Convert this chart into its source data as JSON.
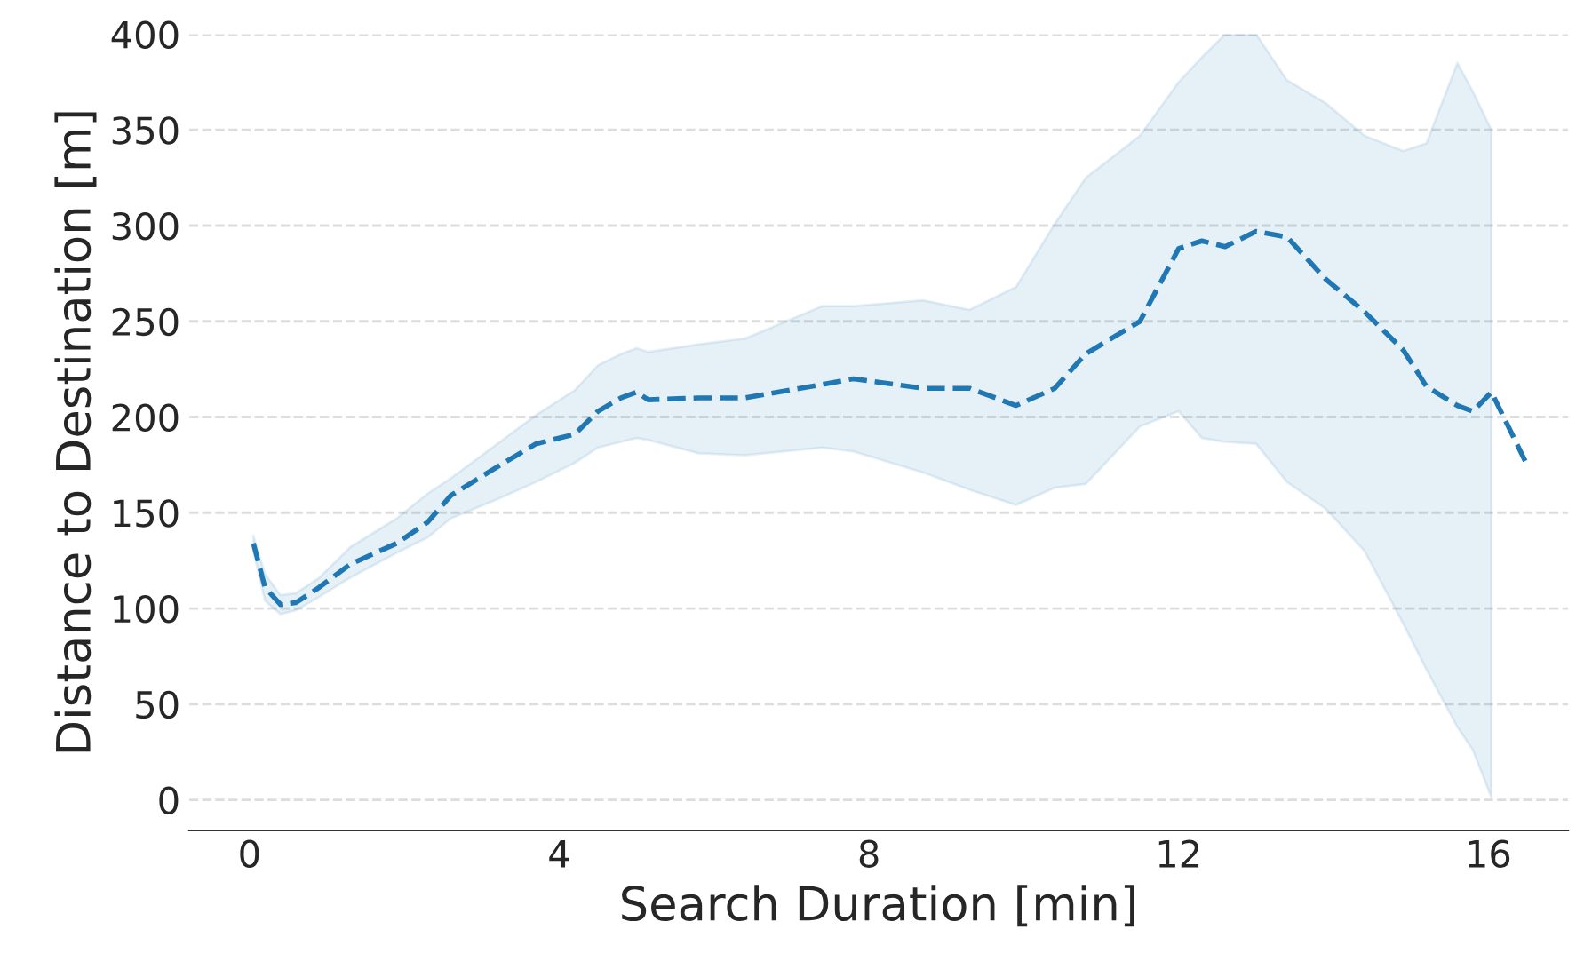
{
  "chart_data": {
    "type": "line",
    "xlabel": "Search Duration [min]",
    "ylabel": "Distance to Destination [m]",
    "x": [
      0.05,
      0.2,
      0.4,
      0.6,
      0.9,
      1.3,
      1.9,
      2.3,
      2.6,
      3.2,
      3.7,
      4.2,
      4.5,
      4.8,
      5.0,
      5.15,
      5.8,
      6.4,
      7.4,
      7.8,
      8.7,
      9.3,
      9.9,
      10.4,
      10.8,
      11.5,
      12.0,
      12.3,
      12.6,
      13.0,
      13.4,
      13.9,
      14.4,
      14.9,
      15.2,
      15.6,
      15.8,
      16.04,
      16.5
    ],
    "series": [
      {
        "color": "#1f77b4",
        "values": [
          134,
          111,
          102,
          103,
          111,
          123,
          134,
          145,
          159,
          174,
          186,
          191,
          203,
          210,
          213,
          209,
          210,
          210,
          217,
          220,
          215,
          215,
          206,
          215,
          233,
          250,
          288,
          292,
          289,
          297,
          294,
          272,
          255,
          235,
          216,
          206,
          203,
          213,
          175
        ],
        "lower": [
          130,
          104,
          97,
          99,
          106,
          116,
          129,
          137,
          147,
          157,
          166,
          176,
          184,
          187,
          189,
          188,
          181,
          180,
          184,
          182,
          171,
          162,
          154,
          163,
          165,
          195,
          203,
          189,
          187,
          186,
          166,
          152,
          130,
          92,
          68,
          38,
          26,
          1,
          null
        ],
        "upper": [
          138,
          118,
          107,
          108,
          116,
          132,
          147,
          160,
          168,
          186,
          201,
          214,
          227,
          233,
          236,
          234,
          238,
          241,
          258,
          258,
          261,
          256,
          268,
          301,
          325,
          347,
          375,
          388,
          400,
          400,
          376,
          364,
          347,
          339,
          343,
          385,
          370,
          350,
          null
        ]
      }
    ],
    "line_style": "dashed",
    "marker": "none",
    "xlim": [
      -0.78,
      17.03
    ],
    "ylim": [
      -16,
      400
    ],
    "xticks": [
      0,
      4,
      8,
      12,
      16
    ],
    "yticks": [
      0,
      50,
      100,
      150,
      200,
      250,
      300,
      350,
      400
    ],
    "grid": "y"
  }
}
